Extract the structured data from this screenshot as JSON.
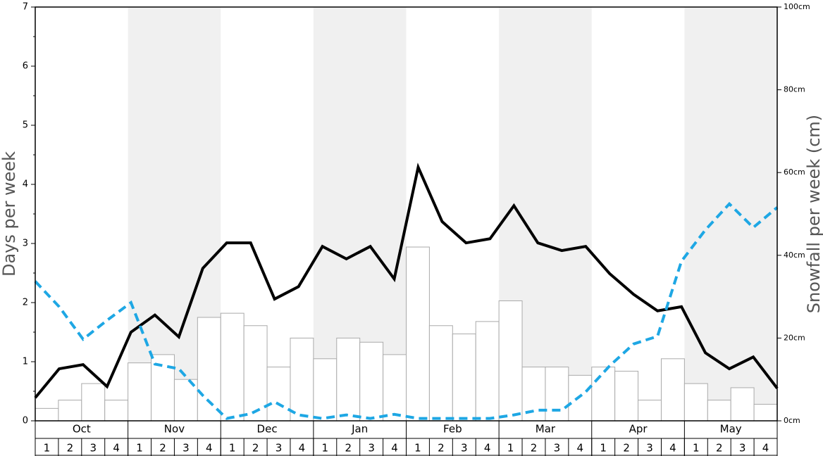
{
  "chart_data": {
    "type": "bar-line",
    "ylabel": "Days per week",
    "y2label": "Snowfall per week (cm)",
    "months": [
      "Oct",
      "Nov",
      "Dec",
      "Jan",
      "Feb",
      "Mar",
      "Apr",
      "May"
    ],
    "shaded_months": [
      false,
      true,
      false,
      true,
      false,
      true,
      false,
      true
    ],
    "shade_color": "#f0f0f0",
    "categories": [
      "1",
      "2",
      "3",
      "4",
      "1",
      "2",
      "3",
      "4",
      "1",
      "2",
      "3",
      "4",
      "1",
      "2",
      "3",
      "4",
      "1",
      "2",
      "3",
      "4",
      "1",
      "2",
      "3",
      "4",
      "1",
      "2",
      "3",
      "4",
      "1",
      "2",
      "3",
      "4"
    ],
    "ylim": [
      0,
      7
    ],
    "yticks": [
      0,
      1,
      2,
      3,
      4,
      5,
      6,
      7
    ],
    "y2lim": [
      0,
      100
    ],
    "y2ticks": [
      {
        "value": 0,
        "label": "0cm"
      },
      {
        "value": 20,
        "label": "20cm"
      },
      {
        "value": 40,
        "label": "40cm"
      },
      {
        "value": 60,
        "label": "60cm"
      },
      {
        "value": 80,
        "label": "80cm"
      },
      {
        "value": 100,
        "label": "100cm"
      }
    ],
    "series": [
      {
        "kind": "bar",
        "axis": "y2",
        "color": "#ffffff",
        "stroke": "#aaaaaa",
        "values": [
          3,
          5,
          9,
          5,
          14,
          16,
          10,
          25,
          26,
          23,
          13,
          20,
          15,
          20,
          19,
          16,
          42,
          23,
          21,
          24,
          29,
          13,
          13,
          11,
          13,
          12,
          5,
          15,
          9,
          5,
          8,
          4
        ]
      },
      {
        "kind": "line",
        "axis": "y",
        "color": "#000000",
        "dashed": false,
        "values": [
          0.39,
          0.88,
          0.95,
          0.58,
          1.5,
          1.79,
          1.42,
          2.58,
          3.01,
          3.01,
          2.06,
          2.27,
          2.95,
          2.74,
          2.95,
          2.4,
          4.29,
          3.37,
          3.01,
          3.08,
          3.64,
          3.01,
          2.88,
          2.95,
          2.49,
          2.14,
          1.86,
          1.93,
          1.15,
          0.88,
          1.08,
          0.55
        ]
      },
      {
        "kind": "line",
        "axis": "y",
        "color": "#1ea7e4",
        "dashed": true,
        "values": [
          2.36,
          1.93,
          1.38,
          1.7,
          2.0,
          0.96,
          0.88,
          0.43,
          0.04,
          0.12,
          0.32,
          0.1,
          0.04,
          0.1,
          0.04,
          0.11,
          0.04,
          0.04,
          0.04,
          0.04,
          0.1,
          0.18,
          0.18,
          0.49,
          0.93,
          1.3,
          1.43,
          2.7,
          3.23,
          3.67,
          3.27,
          3.61
        ]
      }
    ]
  }
}
